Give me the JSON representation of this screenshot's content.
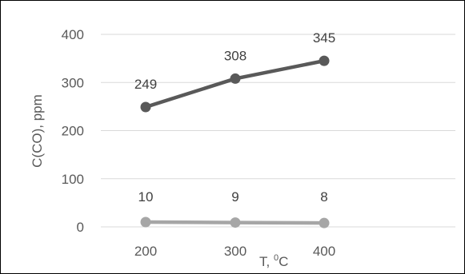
{
  "chart_data": {
    "type": "line",
    "x": [
      200,
      300,
      400
    ],
    "series": [
      {
        "values": [
          249,
          308,
          345
        ],
        "labels": [
          "249",
          "308",
          "345"
        ],
        "color": "#595959"
      },
      {
        "values": [
          10,
          9,
          8
        ],
        "labels": [
          "10",
          "9",
          "8"
        ],
        "color": "#a6a6a6"
      }
    ],
    "xlabel": "T, ",
    "xlabel_sup": "0",
    "xlabel_unit": "C",
    "ylabel": "C(CO), ppm",
    "ylim": [
      0,
      400
    ],
    "yticks": [
      0,
      100,
      200,
      300,
      400
    ],
    "xtick_labels": [
      "200",
      "300",
      "400"
    ],
    "grid": true,
    "gridline_color": "#d9d9d9"
  }
}
